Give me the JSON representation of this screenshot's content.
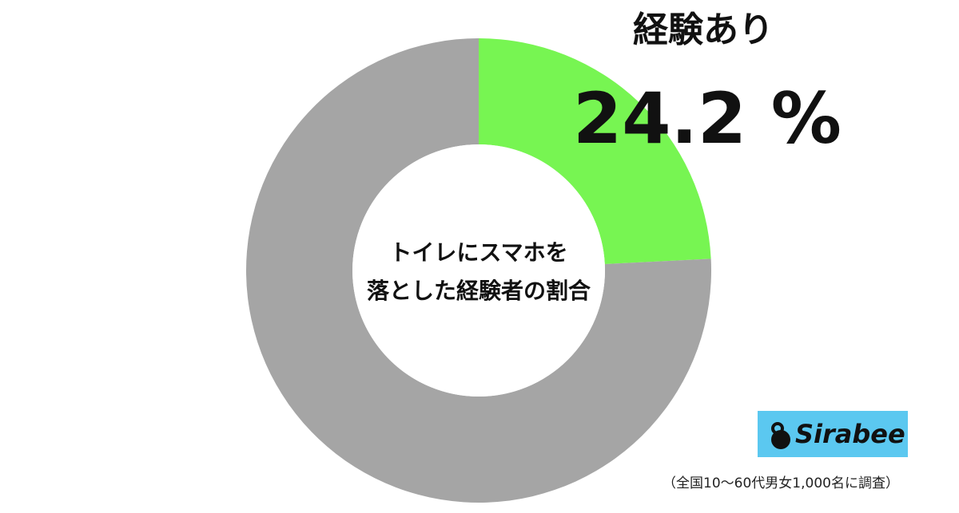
{
  "chart_data": {
    "type": "donut",
    "center_text": [
      "トイレにスマホを",
      "落とした経験者の割合"
    ],
    "categories": [
      "経験あり",
      null
    ],
    "values": [
      24.2,
      75.8
    ],
    "value_labels": [
      "24.2 %",
      null
    ],
    "colors": [
      "#77f552",
      "#a5a5a5"
    ],
    "source": "（全国10〜60代男女1,000名に調査）",
    "logo": "Sirabee"
  }
}
